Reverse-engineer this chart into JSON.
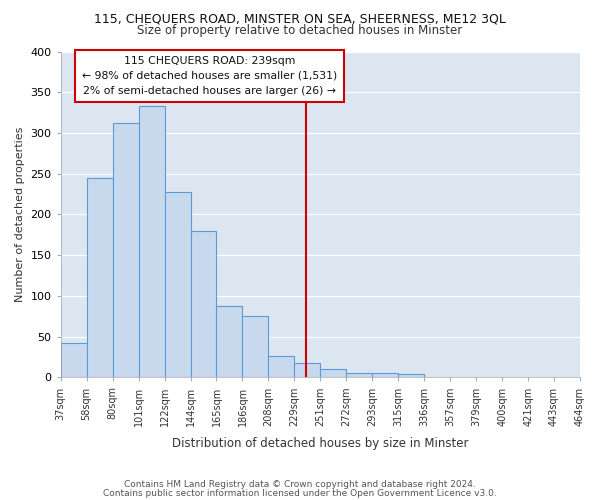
{
  "title": "115, CHEQUERS ROAD, MINSTER ON SEA, SHEERNESS, ME12 3QL",
  "subtitle": "Size of property relative to detached houses in Minster",
  "xlabel": "Distribution of detached houses by size in Minster",
  "ylabel": "Number of detached properties",
  "tick_labels": [
    "37sqm",
    "58sqm",
    "80sqm",
    "101sqm",
    "122sqm",
    "144sqm",
    "165sqm",
    "186sqm",
    "208sqm",
    "229sqm",
    "251sqm",
    "272sqm",
    "293sqm",
    "315sqm",
    "336sqm",
    "357sqm",
    "379sqm",
    "400sqm",
    "421sqm",
    "443sqm",
    "464sqm"
  ],
  "bar_heights": [
    42,
    245,
    312,
    333,
    228,
    180,
    88,
    75,
    26,
    18,
    10,
    5,
    5,
    4,
    1,
    0,
    0,
    0,
    0,
    0
  ],
  "bar_color": "#c8d9ee",
  "bar_edge_color": "#5b9bd5",
  "vline_color": "#cc0000",
  "annotation_title": "115 CHEQUERS ROAD: 239sqm",
  "annotation_line1": "← 98% of detached houses are smaller (1,531)",
  "annotation_line2": "2% of semi-detached houses are larger (26) →",
  "annotation_box_color": "#ffffff",
  "annotation_box_edge": "#cc0000",
  "ylim": [
    0,
    400
  ],
  "yticks": [
    0,
    50,
    100,
    150,
    200,
    250,
    300,
    350,
    400
  ],
  "footer1": "Contains HM Land Registry data © Crown copyright and database right 2024.",
  "footer2": "Contains public sector information licensed under the Open Government Licence v3.0.",
  "fig_bg_color": "#ffffff",
  "plot_bg_color": "#dce6f1",
  "grid_color": "#ffffff",
  "title_fontsize": 9,
  "subtitle_fontsize": 8.5,
  "xlabel_fontsize": 8.5,
  "ylabel_fontsize": 8,
  "tick_fontsize": 7,
  "footer_fontsize": 6.5,
  "ann_fontsize": 7.8
}
